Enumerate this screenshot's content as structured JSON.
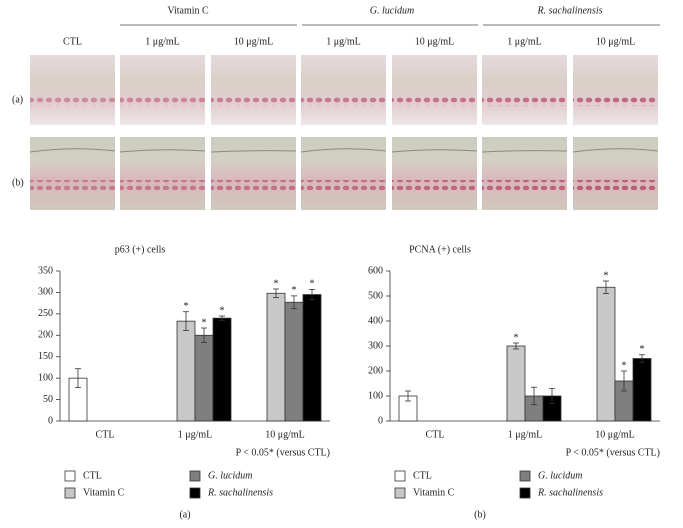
{
  "figure": {
    "column_groups": [
      {
        "label": "Vitamin C",
        "italic": false
      },
      {
        "label": "G. lucidum",
        "italic": true
      },
      {
        "label": "R. sachalinensis",
        "italic": true
      }
    ],
    "column_labels": [
      "CTL",
      "1 μg/mL",
      "10 μg/mL",
      "1 μg/mL",
      "10 μg/mL",
      "1 μg/mL",
      "10 μg/mL"
    ],
    "row_labels": [
      "(a)",
      "(b)"
    ]
  },
  "chart_data": [
    {
      "type": "bar",
      "title": "p63 (+) cells",
      "categories": [
        "CTL",
        "1 μg/mL",
        "10 μg/mL"
      ],
      "series": [
        {
          "name": "CTL",
          "color": "#ffffff",
          "italic": false,
          "values": [
            100,
            null,
            null
          ],
          "errors": [
            22,
            null,
            null
          ],
          "stars": [
            false,
            false,
            false
          ]
        },
        {
          "name": "Vitamin C",
          "color": "#c8c8c8",
          "italic": false,
          "values": [
            null,
            233,
            298
          ],
          "errors": [
            null,
            22,
            10
          ],
          "stars": [
            false,
            true,
            true
          ]
        },
        {
          "name": "G. lucidum",
          "color": "#7f7f7f",
          "italic": true,
          "values": [
            null,
            200,
            277
          ],
          "errors": [
            null,
            17,
            15
          ],
          "stars": [
            false,
            true,
            true
          ]
        },
        {
          "name": "R. sachalinensis",
          "color": "#000000",
          "italic": true,
          "values": [
            null,
            240,
            295
          ],
          "errors": [
            null,
            5,
            12
          ],
          "stars": [
            false,
            true,
            true
          ]
        }
      ],
      "star_text": "*",
      "ylim": [
        0,
        350
      ],
      "yticks": [
        0,
        50,
        100,
        150,
        200,
        250,
        300,
        350
      ],
      "note": "P < 0.05* (versus CTL)",
      "panel_label": "(a)"
    },
    {
      "type": "bar",
      "title": "PCNA (+) cells",
      "categories": [
        "CTL",
        "1 μg/mL",
        "10 μg/mL"
      ],
      "series": [
        {
          "name": "CTL",
          "color": "#ffffff",
          "italic": false,
          "values": [
            100,
            null,
            null
          ],
          "errors": [
            20,
            null,
            null
          ],
          "stars": [
            false,
            false,
            false
          ]
        },
        {
          "name": "Vitamin C",
          "color": "#c8c8c8",
          "italic": false,
          "values": [
            null,
            300,
            535
          ],
          "errors": [
            null,
            12,
            25
          ],
          "stars": [
            false,
            true,
            true
          ]
        },
        {
          "name": "G. lucidum",
          "color": "#7f7f7f",
          "italic": true,
          "values": [
            null,
            100,
            160
          ],
          "errors": [
            null,
            35,
            40
          ],
          "stars": [
            false,
            false,
            true
          ]
        },
        {
          "name": "R. sachalinensis",
          "color": "#000000",
          "italic": true,
          "values": [
            null,
            100,
            250
          ],
          "errors": [
            null,
            30,
            15
          ],
          "stars": [
            false,
            false,
            true
          ]
        }
      ],
      "star_text": "*",
      "ylim": [
        0,
        600
      ],
      "yticks": [
        0,
        100,
        200,
        300,
        400,
        500,
        600
      ],
      "note": "P < 0.05* (versus CTL)",
      "panel_label": "(b)"
    }
  ]
}
